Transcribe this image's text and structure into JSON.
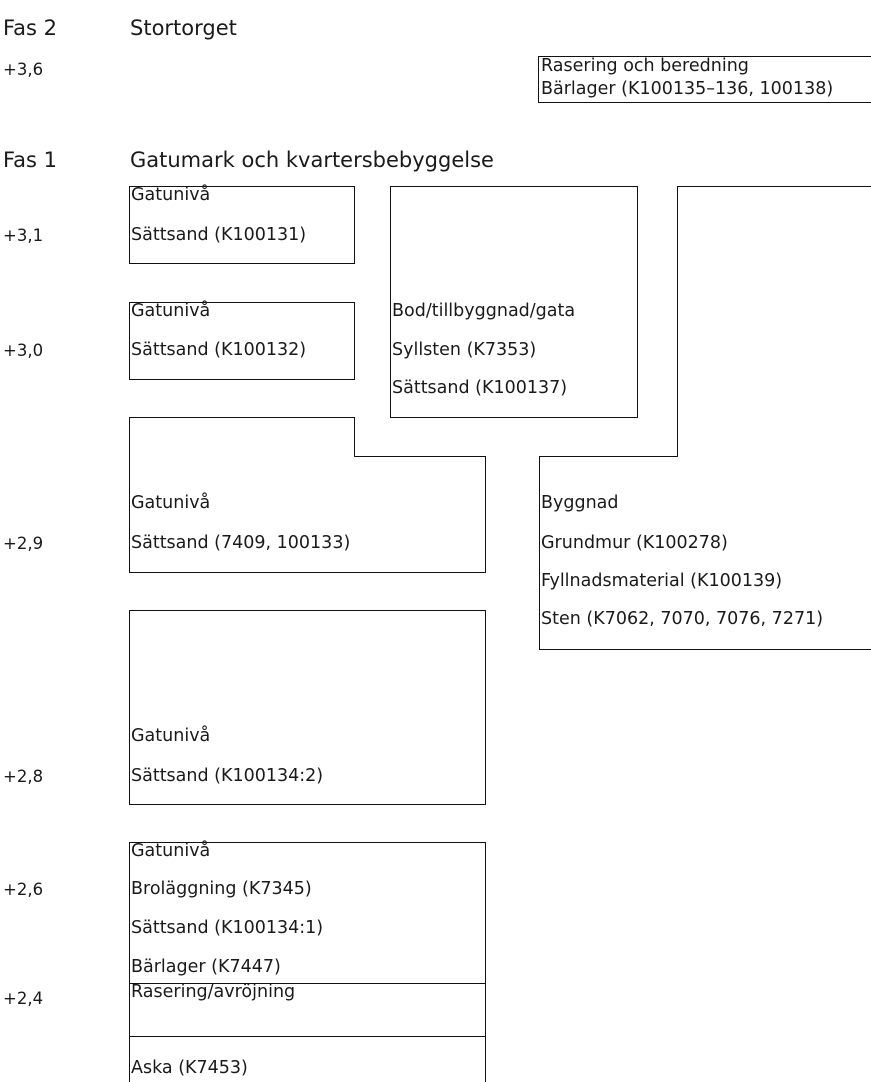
{
  "phase2": {
    "label": "Fas 2",
    "title": "Stortorget",
    "level": "+3,6",
    "box": {
      "line1": "Rasering och beredning",
      "line2": "Bärlager (K100135–136, 100138)"
    }
  },
  "phase1": {
    "label": "Fas 1",
    "title": "Gatumark och kvartersbebyggelse",
    "levels": [
      "+3,1",
      "+3,0",
      "+2,9",
      "+2,8",
      "+2,6",
      "+2,4"
    ],
    "street_boxes": [
      {
        "heading": "Gatunivå",
        "lines": [
          "Sättsand (K100131)"
        ]
      },
      {
        "heading": "Gatunivå",
        "lines": [
          "Sättsand (K100132)"
        ]
      },
      {
        "heading": "Gatunivå",
        "lines": [
          "Sättsand (7409, 100133)"
        ]
      },
      {
        "heading": "Gatunivå",
        "lines": [
          "Sättsand (K100134:2)"
        ]
      },
      {
        "heading": "Gatunivå",
        "lines": [
          "Broläggning (K7345)",
          "Sättsand (K100134:1)",
          "Bärlager (K7447)"
        ]
      },
      {
        "heading": "Rasering/avröjning",
        "lines": [
          "Aska (K7453)"
        ]
      }
    ],
    "bod_box": {
      "heading": "Bod/tillbyggnad/gata",
      "lines": [
        "Syllsten (K7353)",
        "Sättsand (K100137)"
      ]
    },
    "building_box": {
      "heading": "Byggnad",
      "lines": [
        "Grundmur (K100278)",
        "Fyllnadsmaterial (K100139)",
        "Sten (K7062, 7070, 7076, 7271)"
      ]
    }
  }
}
